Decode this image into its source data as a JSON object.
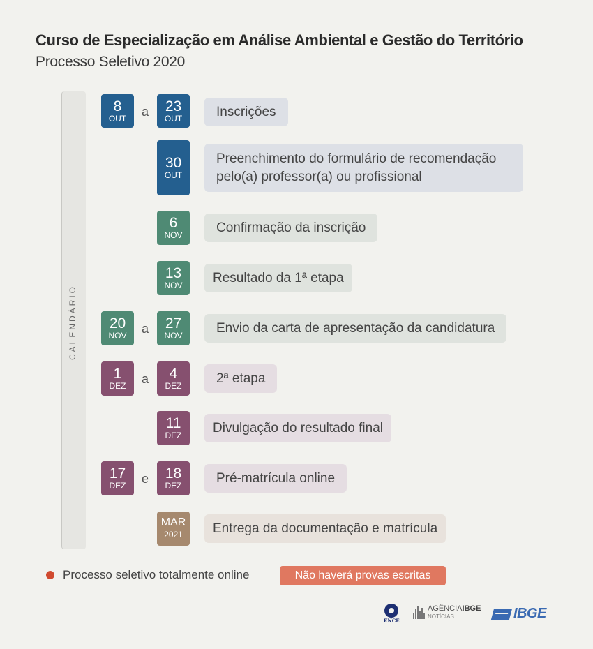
{
  "title": "Curso de Especialização em Análise Ambiental e Gestão do Território",
  "subtitle": "Processo Seletivo 2020",
  "calendar_label": "CALENDÁRIO",
  "colors": {
    "out": "#245f8f",
    "nov": "#4f8a74",
    "dez": "#86506f",
    "mar": "#a6896e",
    "alert": "#e07860",
    "dot": "#d04a2f"
  },
  "events": [
    {
      "from": {
        "day": "8",
        "month": "OUT"
      },
      "connector": "a",
      "to": {
        "day": "23",
        "month": "OUT"
      },
      "label": "Inscrições"
    },
    {
      "to": {
        "day": "30",
        "month": "OUT"
      },
      "label": "Preenchimento do formulário de recomendação pelo(a) professor(a) ou profissional"
    },
    {
      "to": {
        "day": "6",
        "month": "NOV"
      },
      "label": "Confirmação da inscrição"
    },
    {
      "to": {
        "day": "13",
        "month": "NOV"
      },
      "label": "Resultado da 1ª etapa"
    },
    {
      "from": {
        "day": "20",
        "month": "NOV"
      },
      "connector": "a",
      "to": {
        "day": "27",
        "month": "NOV"
      },
      "label": "Envio da carta de apresentação da candidatura"
    },
    {
      "from": {
        "day": "1",
        "month": "DEZ"
      },
      "connector": "a",
      "to": {
        "day": "4",
        "month": "DEZ"
      },
      "label": "2ª etapa"
    },
    {
      "to": {
        "day": "11",
        "month": "DEZ"
      },
      "label": "Divulgação do resultado final"
    },
    {
      "from": {
        "day": "17",
        "month": "DEZ"
      },
      "connector": "e",
      "to": {
        "day": "18",
        "month": "DEZ"
      },
      "label": "Pré-matrícula online"
    },
    {
      "to": {
        "day": "MAR",
        "month": "2021"
      },
      "label": "Entrega da documentação e matrícula"
    }
  ],
  "footer": {
    "note": "Processo seletivo totalmente online",
    "badge": "Não haverá provas escritas"
  },
  "logos": {
    "ence": "ENCE",
    "agencia_prefix": "AGÊNCIA",
    "agencia_brand": "IBGE",
    "agencia_sub": "NOTÍCIAS",
    "ibge": "IBGE"
  }
}
